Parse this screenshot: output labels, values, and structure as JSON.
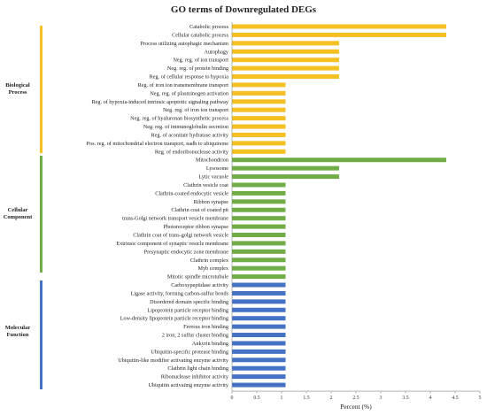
{
  "chart_data": {
    "type": "bar",
    "orientation": "horizontal",
    "title": "GO terms of Downregulated DEGs",
    "xlabel": "Percent (%)",
    "xlim": [
      0,
      5
    ],
    "xticks": [
      "0",
      "0.5",
      "1",
      "1.5",
      "2",
      "2.5",
      "3",
      "3.5",
      "4",
      "4.5",
      "5"
    ],
    "grid": false,
    "groups": [
      {
        "name": "Biological Process",
        "color": "#F5C022",
        "categories": [
          "Catabolic process",
          "Cellular catabolic process",
          "Process utilizing autophagic mechanism",
          "Autophagy",
          "Neg. reg. of ion transport",
          "Neg. reg. of protein binding",
          "Reg. of cellular response to hypoxia",
          "Reg. of iron ion transmembrane transport",
          "Neg. reg. of plasminogen activation",
          "Reg. of hypoxia-induced intrinsic apoptotic signaling pathway",
          "Neg. reg. of iron ion transport",
          "Neg. reg. of hyaluronan biosynthetic process",
          "Neg. reg. of immunoglobulin secretion",
          "Reg. of aconitate hydratase activity",
          "Pos. reg. of mitochondrial electron transport, nadh to ubiquinone",
          "Reg. of endoribonuclease activity"
        ],
        "values": [
          4.32,
          4.32,
          2.16,
          2.16,
          2.16,
          2.16,
          2.16,
          1.08,
          1.08,
          1.08,
          1.08,
          1.08,
          1.08,
          1.08,
          1.08,
          1.08
        ]
      },
      {
        "name": "Cellular Component",
        "color": "#70AD47",
        "categories": [
          "Mitochondrion",
          "Lysosome",
          "Lytic vacuole",
          "Clathrin vesicle coat",
          "Clathrin-coated endocytic vesicle",
          "Ribbon synapse",
          "Clathrin coat of coated pit",
          "trans-Golgi network transport vesicle membrane",
          "Photoreceptor ribbon synapse",
          "Clathrin coat of trans-golgi network vesicle",
          "Extrinsic component of synaptic vesicle membrane",
          "Presynaptic endocytic zone membrane",
          "Clathrin complex",
          "Myb complex",
          "Mitotic spindle microtubule"
        ],
        "values": [
          4.32,
          2.16,
          2.16,
          1.08,
          1.08,
          1.08,
          1.08,
          1.08,
          1.08,
          1.08,
          1.08,
          1.08,
          1.08,
          1.08,
          1.08
        ]
      },
      {
        "name": "Molecular Function",
        "color": "#4472C4",
        "categories": [
          "Carboxypeptidase activity",
          "Ligase activity, forming carbon-sulfur bonds",
          "Disordered domain specific binding",
          "Lipoprotein particle receptor binding",
          "Low-density lipoprotein particle receptor binding",
          "Ferrous iron binding",
          "2 iron, 2 sulfur cluster binding",
          "Ankyrin binding",
          "Ubiquitin-specific protease binding",
          "Ubiquitin-like modifier activating enzyme activity",
          "Clathrin light chain binding",
          "Ribonuclease inhibitor activity",
          "Ubiquitin activating enzyme activity"
        ],
        "values": [
          1.08,
          1.08,
          1.08,
          1.08,
          1.08,
          1.08,
          1.08,
          1.08,
          1.08,
          1.08,
          1.08,
          1.08,
          1.08
        ]
      }
    ]
  },
  "group_labels": {
    "bp_line1": "Biological",
    "bp_line2": "Process",
    "cc_line1": "Cellular",
    "cc_line2": "Component",
    "mf_line1": "Molecular",
    "mf_line2": "Function"
  }
}
